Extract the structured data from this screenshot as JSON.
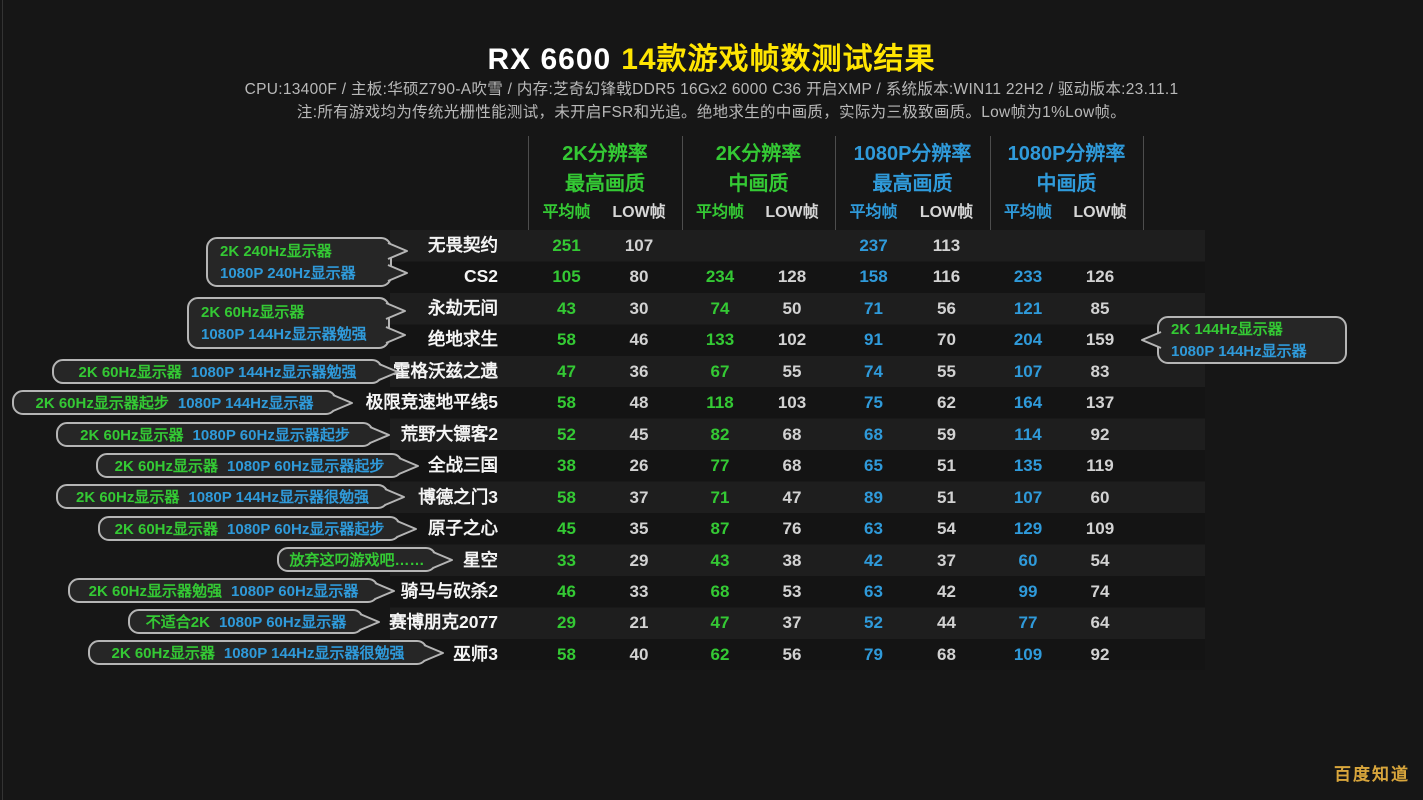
{
  "title": {
    "prefix": "RX 6600",
    "highlight": "14款游戏帧数测试结果"
  },
  "subtitle": "CPU:13400F  /  主板:华硕Z790-A吹雪  /  内存:芝奇幻锋戟DDR5 16Gx2 6000 C36 开启XMP  /  系统版本:WIN11 22H2  /  驱动版本:23.11.1",
  "note": "注:所有游戏均为传统光栅性能测试，未开启FSR和光追。绝地求生的中画质，实际为三极致画质。Low帧为1%Low帧。",
  "watermark": "百度知道",
  "colors": {
    "accent_2k": "#34c934",
    "accent_1080p": "#2f9ada",
    "title_highlight": "#ffe502",
    "low_value": "#d2d2d2",
    "background": "#161616"
  },
  "chart_data": {
    "type": "table",
    "title": "RX 6600 14款游戏帧数测试结果",
    "column_groups": [
      {
        "line1": "2K分辨率",
        "line2": "最高画质",
        "accent": "#34c934",
        "sub": [
          "平均帧",
          "LOW帧"
        ]
      },
      {
        "line1": "2K分辨率",
        "line2": "中画质",
        "accent": "#34c934",
        "sub": [
          "平均帧",
          "LOW帧"
        ]
      },
      {
        "line1": "1080P分辨率",
        "line2": "最高画质",
        "accent": "#2f9ada",
        "sub": [
          "平均帧",
          "LOW帧"
        ]
      },
      {
        "line1": "1080P分辨率",
        "line2": "中画质",
        "accent": "#2f9ada",
        "sub": [
          "平均帧",
          "LOW帧"
        ]
      }
    ],
    "rows": [
      {
        "game": "无畏契约",
        "values": [
          251,
          107,
          null,
          null,
          237,
          113,
          null,
          null
        ]
      },
      {
        "game": "CS2",
        "values": [
          105,
          80,
          234,
          128,
          158,
          116,
          233,
          126
        ]
      },
      {
        "game": "永劫无间",
        "values": [
          43,
          30,
          74,
          50,
          71,
          56,
          121,
          85
        ]
      },
      {
        "game": "绝地求生",
        "values": [
          58,
          46,
          133,
          102,
          91,
          70,
          204,
          159
        ]
      },
      {
        "game": "霍格沃兹之遗",
        "values": [
          47,
          36,
          67,
          55,
          74,
          55,
          107,
          83
        ]
      },
      {
        "game": "极限竞速地平线5",
        "values": [
          58,
          48,
          118,
          103,
          75,
          62,
          164,
          137
        ]
      },
      {
        "game": "荒野大镖客2",
        "values": [
          52,
          45,
          82,
          68,
          68,
          59,
          114,
          92
        ]
      },
      {
        "game": "全战三国",
        "values": [
          38,
          26,
          77,
          68,
          65,
          51,
          135,
          119
        ]
      },
      {
        "game": "博德之门3",
        "values": [
          58,
          37,
          71,
          47,
          89,
          51,
          107,
          60
        ]
      },
      {
        "game": "原子之心",
        "values": [
          45,
          35,
          87,
          76,
          63,
          54,
          129,
          109
        ]
      },
      {
        "game": "星空",
        "values": [
          33,
          29,
          43,
          38,
          42,
          37,
          60,
          54
        ]
      },
      {
        "game": "骑马与砍杀2",
        "values": [
          46,
          33,
          68,
          53,
          63,
          42,
          99,
          74
        ]
      },
      {
        "game": "赛博朋克2077",
        "values": [
          29,
          21,
          47,
          37,
          52,
          44,
          77,
          64
        ]
      },
      {
        "game": "巫师3",
        "values": [
          58,
          40,
          62,
          56,
          79,
          68,
          109,
          92
        ]
      }
    ]
  },
  "callouts": [
    {
      "parts": [
        {
          "text": "2K 240Hz显示器"
        },
        {
          "text": "1080P 240Hz显示器"
        }
      ]
    },
    {
      "parts": [
        {
          "text": "2K 60Hz显示器"
        },
        {
          "text": "1080P 144Hz显示器勉强"
        }
      ]
    },
    {
      "parts": [
        {
          "text": "2K 60Hz显示器"
        },
        {
          "text": "1080P 144Hz显示器勉强"
        }
      ]
    },
    {
      "parts": [
        {
          "text": "2K 60Hz显示器起步"
        },
        {
          "text": "1080P 144Hz显示器"
        }
      ]
    },
    {
      "parts": [
        {
          "text": "2K 60Hz显示器"
        },
        {
          "text": "1080P 60Hz显示器起步"
        }
      ]
    },
    {
      "parts": [
        {
          "text": "2K 60Hz显示器"
        },
        {
          "text": "1080P 60Hz显示器起步"
        }
      ]
    },
    {
      "parts": [
        {
          "text": "2K 60Hz显示器"
        },
        {
          "text": "1080P 144Hz显示器很勉强"
        }
      ]
    },
    {
      "parts": [
        {
          "text": "2K 60Hz显示器"
        },
        {
          "text": "1080P 60Hz显示器起步"
        }
      ]
    },
    {
      "parts": [
        {
          "text": "放弃这叼游戏吧……"
        }
      ]
    },
    {
      "parts": [
        {
          "text": "2K 60Hz显示器勉强"
        },
        {
          "text": "1080P 60Hz显示器"
        }
      ]
    },
    {
      "parts": [
        {
          "text": "不适合2K"
        },
        {
          "text": "1080P 60Hz显示器"
        }
      ]
    },
    {
      "parts": [
        {
          "text": "2K 60Hz显示器"
        },
        {
          "text": "1080P 144Hz显示器很勉强"
        }
      ]
    },
    {
      "parts": [
        {
          "text": "2K 144Hz显示器"
        },
        {
          "text": "1080P 144Hz显示器"
        }
      ]
    }
  ]
}
